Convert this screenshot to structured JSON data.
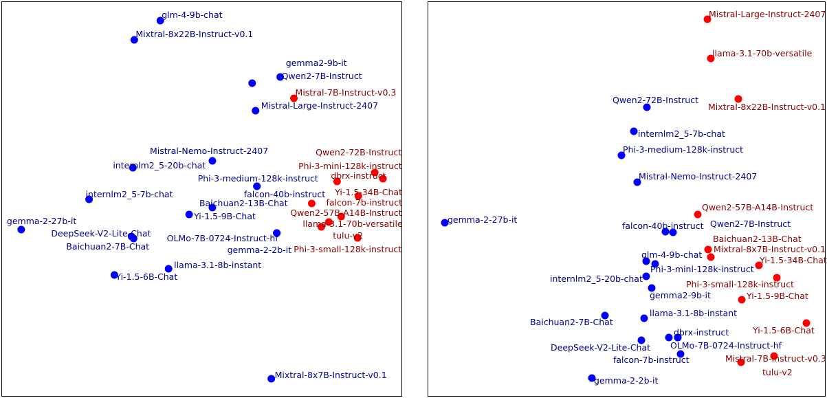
{
  "colors": {
    "blue": "#0000ff",
    "red": "#ff0000",
    "blue_text": "#00008b",
    "red_text": "#8b0000"
  },
  "chart_data": [
    {
      "type": "scatter",
      "title": "",
      "xlabel": "",
      "ylabel": "",
      "axes_visible": false,
      "grid": false,
      "xlim": [
        0,
        585
      ],
      "ylim": [
        0,
        575
      ],
      "points": [
        {
          "label": "glm-4-9b-chat",
          "x": 232,
          "y": 547,
          "group": "blue",
          "dx": 2,
          "dy": -8
        },
        {
          "label": "Mixtral-8x22B-Instruct-v0.1",
          "x": 194,
          "y": 519,
          "group": "blue",
          "dx": 2,
          "dy": -8
        },
        {
          "label": "gemma2-9b-it",
          "x": 366,
          "y": 456,
          "group": "blue",
          "dx": 49,
          "dy": -29
        },
        {
          "label": "Qwen2-7B-Instruct",
          "x": 407,
          "y": 465,
          "group": "blue",
          "dx": 2,
          "dy": -1
        },
        {
          "label": "Mistral-7B-Instruct-v0.3",
          "x": 427,
          "y": 434,
          "group": "red",
          "dx": 2,
          "dy": -8
        },
        {
          "label": "Mistral-Large-Instruct-2407",
          "x": 371,
          "y": 416,
          "group": "blue",
          "dx": 8,
          "dy": -7
        },
        {
          "label": "Mistral-Nemo-Instruct-2407",
          "x": 308,
          "y": 343,
          "group": "blue",
          "dx": -91,
          "dy": -14
        },
        {
          "label": "internlm2_5-20b-chat",
          "x": 192,
          "y": 333,
          "group": "blue",
          "dx": -29,
          "dy": -3
        },
        {
          "label": "Qwen2-72B-Instruct",
          "x": 545,
          "y": 326,
          "group": "red",
          "dx": -86,
          "dy": -29
        },
        {
          "label": "Phi-3-mini-128k-instruct",
          "x": 557,
          "y": 317,
          "group": "red",
          "dx": -123,
          "dy": -18
        },
        {
          "label": "dbrx-instruct",
          "x": 490,
          "y": 313,
          "group": "red",
          "dx": -9,
          "dy": -8
        },
        {
          "label": "Phi-3-medium-128k-instruct",
          "x": 373,
          "y": 306,
          "group": "blue",
          "dx": -86,
          "dy": -11
        },
        {
          "label": "falcon-40b-instruct",
          "x": 373,
          "y": 306,
          "group": "blue",
          "dx": -19,
          "dy": 12
        },
        {
          "label": "Yi-1.5-34B-Chat",
          "x": 521,
          "y": 292,
          "group": "red",
          "dx": -34,
          "dy": -5
        },
        {
          "label": "internlm2_5-7b-chat",
          "x": 128,
          "y": 287,
          "group": "blue",
          "dx": -5,
          "dy": -7
        },
        {
          "label": "Baichuan2-13B-Chat",
          "x": 308,
          "y": 275,
          "group": "blue",
          "dx": -19,
          "dy": -6
        },
        {
          "label": "falcon-7b-instruct",
          "x": 453,
          "y": 281,
          "group": "red",
          "dx": 21,
          "dy": -1
        },
        {
          "label": "Qwen2-57B-A14B-Instruct",
          "x": 496,
          "y": 262,
          "group": "red",
          "dx": -74,
          "dy": -5
        },
        {
          "label": "Yi-1.5-9B-Chat",
          "x": 274,
          "y": 265,
          "group": "blue",
          "dx": 7,
          "dy": 3
        },
        {
          "label": "llama-3.1-70b-versatile",
          "x": 478,
          "y": 254,
          "group": "red",
          "dx": -38,
          "dy": 3
        },
        {
          "label": "",
          "x": 467,
          "y": 247,
          "group": "red",
          "dx": 0,
          "dy": 0
        },
        {
          "label": "gemma-2-27b-it",
          "x": 29,
          "y": 243,
          "group": "blue",
          "dx": -21,
          "dy": -12
        },
        {
          "label": "DeepSeek-V2-Lite-Chat",
          "x": 190,
          "y": 233,
          "group": "blue",
          "dx": -117,
          "dy": -4
        },
        {
          "label": "Baichuan2-7B-Chat",
          "x": 193,
          "y": 230,
          "group": "blue",
          "dx": -98,
          "dy": 12
        },
        {
          "label": "OLMo-7B-0724-Instruct-hf",
          "x": 402,
          "y": 238,
          "group": "blue",
          "dx": -160,
          "dy": 8
        },
        {
          "label": "gemma-2-2b-it",
          "x": 402,
          "y": 238,
          "group": "blue",
          "dx": -72,
          "dy": 25
        },
        {
          "label": "tulu-v2",
          "x": 520,
          "y": 231,
          "group": "red",
          "dx": -36,
          "dy": -3
        },
        {
          "label": "Phi-3-small-128k-instruct",
          "x": 520,
          "y": 231,
          "group": "red",
          "dx": -93,
          "dy": 17
        },
        {
          "label": "llama-3.1-8b-instant",
          "x": 244,
          "y": 186,
          "group": "blue",
          "dx": 8,
          "dy": -5
        },
        {
          "label": "Yi-1.5-6B-Chat",
          "x": 165,
          "y": 177,
          "group": "blue",
          "dx": 2,
          "dy": 3
        },
        {
          "label": "Mixtral-8x7B-Instruct-v0.1",
          "x": 394,
          "y": 26,
          "group": "blue",
          "dx": 5,
          "dy": -5
        }
      ]
    },
    {
      "type": "scatter",
      "title": "",
      "xlabel": "",
      "ylabel": "",
      "axes_visible": false,
      "grid": false,
      "xlim": [
        0,
        579
      ],
      "ylim": [
        0,
        575
      ],
      "points": [
        {
          "label": "Mistral-Large-Instruct-2407",
          "x": 407,
          "y": 549,
          "group": "red",
          "dx": 2,
          "dy": -7
        },
        {
          "label": "llama-3.1-70b-versatile",
          "x": 412,
          "y": 492,
          "group": "red",
          "dx": 2,
          "dy": -7
        },
        {
          "label": "Qwen2-72B-Instruct",
          "x": 319,
          "y": 421,
          "group": "blue",
          "dx": -50,
          "dy": -10
        },
        {
          "label": "Mixtral-8x22B-Instruct-v0.1",
          "x": 452,
          "y": 433,
          "group": "red",
          "dx": -44,
          "dy": 12
        },
        {
          "label": "internlm2_5-7b-chat",
          "x": 300,
          "y": 386,
          "group": "blue",
          "dx": 6,
          "dy": 4
        },
        {
          "label": "Phi-3-medium-128k-instruct",
          "x": 282,
          "y": 351,
          "group": "blue",
          "dx": 2,
          "dy": -8
        },
        {
          "label": "Mistral-Nemo-Instruct-2407",
          "x": 305,
          "y": 312,
          "group": "blue",
          "dx": 2,
          "dy": -8
        },
        {
          "label": "Qwen2-57B-A14B-Instruct",
          "x": 393,
          "y": 265,
          "group": "red",
          "dx": 6,
          "dy": -10
        },
        {
          "label": "gemma-2-27b-it",
          "x": 25,
          "y": 253,
          "group": "blue",
          "dx": 4,
          "dy": -4
        },
        {
          "label": "falcon-40b-instruct",
          "x": 346,
          "y": 240,
          "group": "blue",
          "dx": -63,
          "dy": -8
        },
        {
          "label": "Qwen2-7B-Instruct",
          "x": 357,
          "y": 239,
          "group": "blue",
          "dx": 54,
          "dy": -12
        },
        {
          "label": "Baichuan2-13B-Chat",
          "x": 408,
          "y": 214,
          "group": "red",
          "dx": 7,
          "dy": -15
        },
        {
          "label": "Mixtral-8x7B-Instruct-v0.1",
          "x": 412,
          "y": 203,
          "group": "red",
          "dx": 4,
          "dy": -11
        },
        {
          "label": "glm-4-9b-chat",
          "x": 318,
          "y": 197,
          "group": "blue",
          "dx": -7,
          "dy": -9
        },
        {
          "label": "Phi-3-mini-128k-instruct",
          "x": 331,
          "y": 193,
          "group": "blue",
          "dx": -7,
          "dy": 8
        },
        {
          "label": "Yi-1.5-34B-Chat",
          "x": 482,
          "y": 191,
          "group": "red",
          "dx": 1,
          "dy": -7
        },
        {
          "label": "internlm2_5-20b-chat",
          "x": 318,
          "y": 175,
          "group": "blue",
          "dx": -140,
          "dy": 4
        },
        {
          "label": "Phi-3-small-128k-instruct",
          "x": 508,
          "y": 173,
          "group": "red",
          "dx": -132,
          "dy": 10
        },
        {
          "label": "gemma2-9b-it",
          "x": 326,
          "y": 158,
          "group": "blue",
          "dx": -3,
          "dy": 11
        },
        {
          "label": "Yi-1.5-9B-Chat",
          "x": 457,
          "y": 141,
          "group": "red",
          "dx": 7,
          "dy": -5
        },
        {
          "label": "llama-3.1-8b-instant",
          "x": 315,
          "y": 114,
          "group": "blue",
          "dx": 8,
          "dy": -7
        },
        {
          "label": "Baichuan2-7B-Chat",
          "x": 258,
          "y": 118,
          "group": "blue",
          "dx": -109,
          "dy": 10
        },
        {
          "label": "Yi-1.5-6B-Chat",
          "x": 551,
          "y": 107,
          "group": "red",
          "dx": -78,
          "dy": 11
        },
        {
          "label": "dbrx-instruct",
          "x": 351,
          "y": 86,
          "group": "blue",
          "dx": 7,
          "dy": -7
        },
        {
          "label": "",
          "x": 364,
          "y": 86,
          "group": "blue",
          "dx": 0,
          "dy": 0
        },
        {
          "label": "OLMo-7B-0724-Instruct-hf",
          "x": 364,
          "y": 86,
          "group": "blue",
          "dx": -11,
          "dy": 12
        },
        {
          "label": "DeepSeek-V2-Lite-Chat",
          "x": 311,
          "y": 82,
          "group": "blue",
          "dx": -132,
          "dy": 11
        },
        {
          "label": "falcon-7b-instruct",
          "x": 368,
          "y": 62,
          "group": "blue",
          "dx": -98,
          "dy": 9
        },
        {
          "label": "Mistral-7B-Instruct-v0.3",
          "x": 504,
          "y": 59,
          "group": "red",
          "dx": -71,
          "dy": 4
        },
        {
          "label": "tulu-v2",
          "x": 456,
          "y": 50,
          "group": "red",
          "dx": 31,
          "dy": 15
        },
        {
          "label": "gemma-2-2b-it",
          "x": 239,
          "y": 27,
          "group": "blue",
          "dx": 3,
          "dy": 4
        }
      ]
    }
  ]
}
